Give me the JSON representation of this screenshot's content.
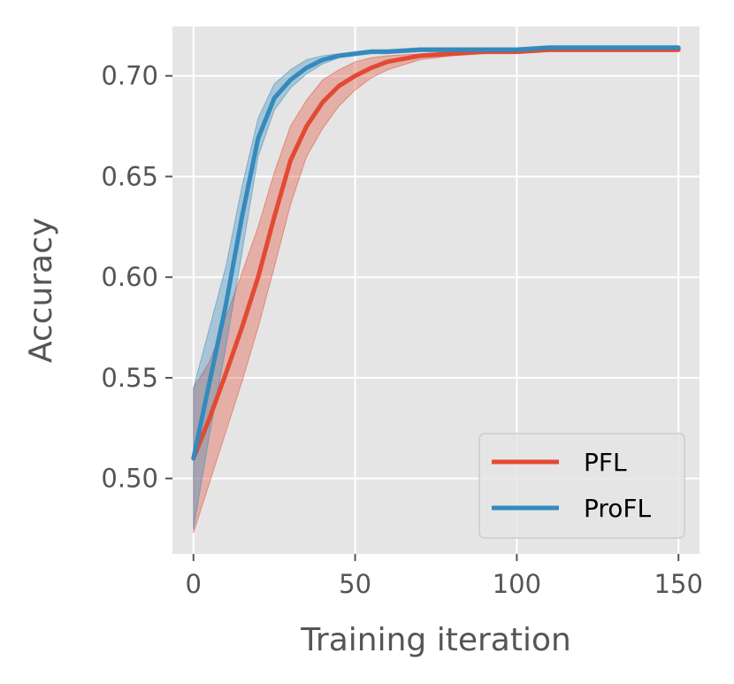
{
  "chart_data": {
    "type": "line",
    "title": "",
    "xlabel": "Training iteration",
    "ylabel": "Accuracy",
    "xlim": [
      -6.5,
      156.5
    ],
    "ylim": [
      0.4625,
      0.7245
    ],
    "xticks": [
      0,
      50,
      100,
      150
    ],
    "xtick_labels": [
      "0",
      "50",
      "100",
      "150"
    ],
    "yticks": [
      0.5,
      0.55,
      0.6,
      0.65,
      0.7
    ],
    "ytick_labels": [
      "0.50",
      "0.55",
      "0.60",
      "0.65",
      "0.70"
    ],
    "grid": true,
    "legend_position": "lower-right",
    "x": [
      0,
      5,
      10,
      15,
      20,
      25,
      30,
      35,
      40,
      45,
      50,
      55,
      60,
      70,
      80,
      90,
      100,
      110,
      120,
      130,
      140,
      150
    ],
    "series": [
      {
        "name": "PFL",
        "color": "#e24a33",
        "values": [
          0.51,
          0.53,
          0.552,
          0.575,
          0.6,
          0.63,
          0.658,
          0.675,
          0.687,
          0.695,
          0.7,
          0.704,
          0.707,
          0.71,
          0.711,
          0.712,
          0.712,
          0.713,
          0.713,
          0.713,
          0.713,
          0.713
        ],
        "lower": [
          0.473,
          0.498,
          0.523,
          0.548,
          0.575,
          0.605,
          0.636,
          0.66,
          0.674,
          0.685,
          0.693,
          0.699,
          0.703,
          0.708,
          0.71,
          0.711,
          0.711,
          0.712,
          0.712,
          0.712,
          0.712,
          0.712
        ],
        "upper": [
          0.545,
          0.558,
          0.58,
          0.602,
          0.625,
          0.652,
          0.675,
          0.688,
          0.698,
          0.703,
          0.707,
          0.709,
          0.71,
          0.711,
          0.712,
          0.713,
          0.713,
          0.714,
          0.714,
          0.714,
          0.714,
          0.714
        ]
      },
      {
        "name": "ProFL",
        "color": "#348abd",
        "values": [
          0.51,
          0.548,
          0.586,
          0.63,
          0.669,
          0.689,
          0.698,
          0.704,
          0.708,
          0.71,
          0.711,
          0.712,
          0.712,
          0.713,
          0.713,
          0.713,
          0.713,
          0.714,
          0.714,
          0.714,
          0.714,
          0.714
        ],
        "lower": [
          0.475,
          0.522,
          0.565,
          0.612,
          0.66,
          0.683,
          0.694,
          0.701,
          0.706,
          0.709,
          0.71,
          0.711,
          0.711,
          0.712,
          0.712,
          0.712,
          0.712,
          0.713,
          0.713,
          0.713,
          0.713,
          0.713
        ],
        "upper": [
          0.545,
          0.575,
          0.605,
          0.645,
          0.679,
          0.696,
          0.703,
          0.708,
          0.71,
          0.711,
          0.712,
          0.713,
          0.713,
          0.714,
          0.714,
          0.714,
          0.714,
          0.715,
          0.715,
          0.715,
          0.715,
          0.715
        ]
      }
    ]
  }
}
